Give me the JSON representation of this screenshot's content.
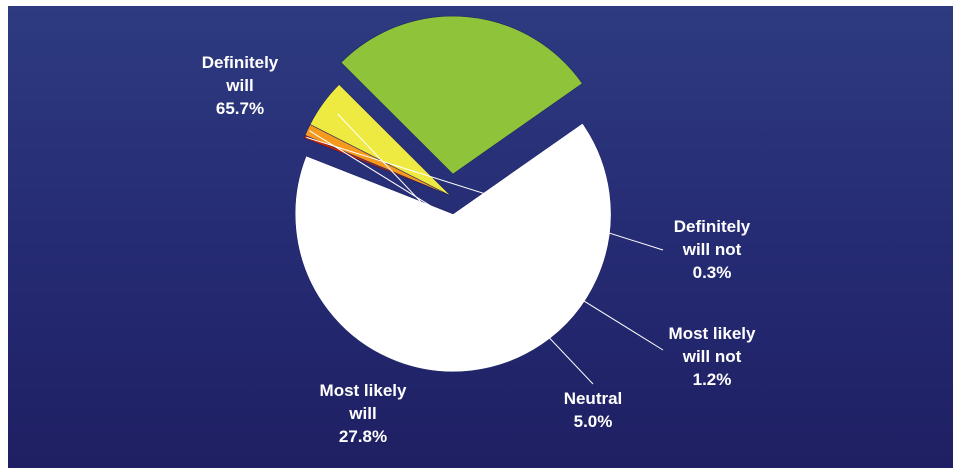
{
  "chart_data": {
    "type": "pie",
    "title": "",
    "slices": [
      {
        "label_lines": [
          "Definitely",
          "will"
        ],
        "value_label": "65.7%",
        "value": 65.7,
        "color": "#ffffff",
        "exploded": true
      },
      {
        "label_lines": [
          "Definitely",
          "will not"
        ],
        "value_label": "0.3%",
        "value": 0.3,
        "color": "#cc2200",
        "exploded": false
      },
      {
        "label_lines": [
          "Most likely",
          "will not"
        ],
        "value_label": "1.2%",
        "value": 1.2,
        "color": "#f59a1c",
        "exploded": false
      },
      {
        "label_lines": [
          "Neutral"
        ],
        "value_label": "5.0%",
        "value": 5.0,
        "color": "#eeea42",
        "exploded": false
      },
      {
        "label_lines": [
          "Most likely",
          "will"
        ],
        "value_label": "27.8%",
        "value": 27.8,
        "color": "#8fc43a",
        "exploded": true
      }
    ],
    "start_angle_deg": 55,
    "direction": "clockwise",
    "legend": "none",
    "colors": {
      "background_top": "#2e3b80",
      "background_bottom": "#1f1f63",
      "label_text": "#ffffff",
      "leader_line": "#ffffff"
    }
  }
}
